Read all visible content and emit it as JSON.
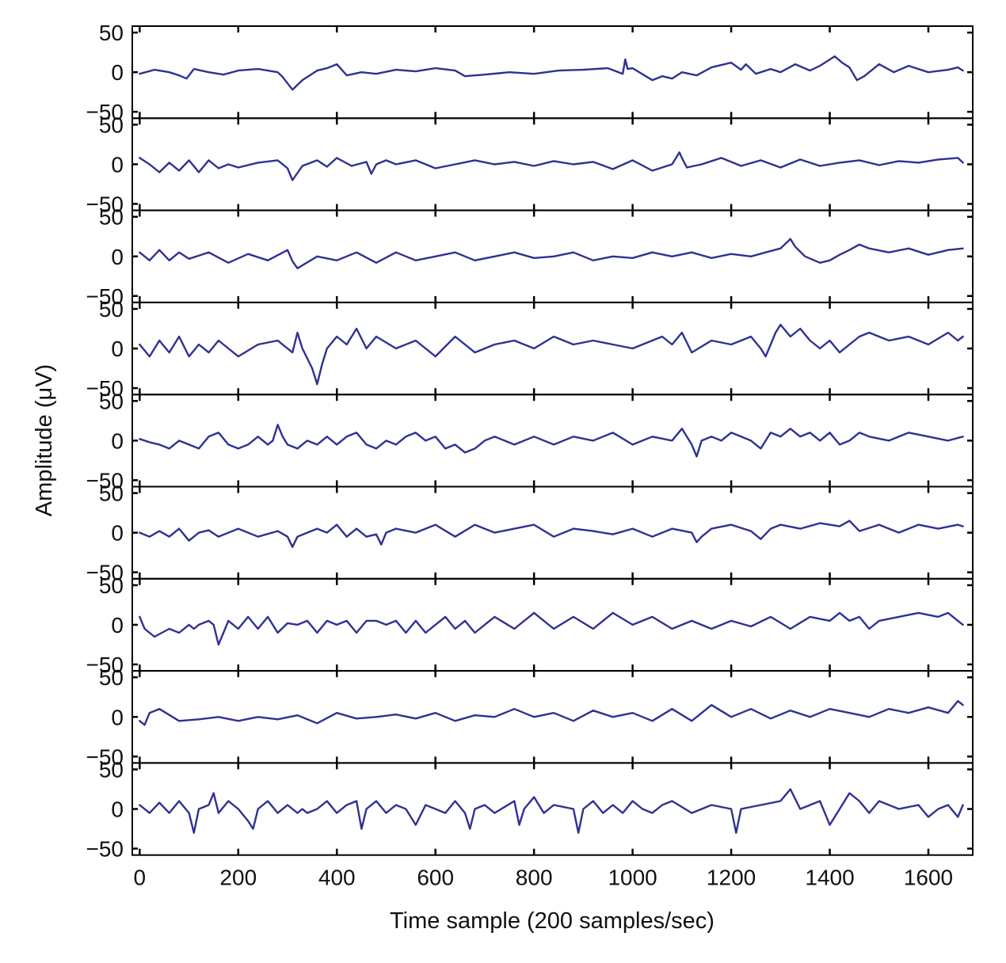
{
  "chart_data": {
    "type": "line",
    "xlabel": "Time sample (200 samples/sec)",
    "ylabel": "Amplitude (μV)",
    "xlim": [
      -15,
      1690
    ],
    "x_ticks": [
      0,
      200,
      400,
      600,
      800,
      1000,
      1200,
      1400,
      1600
    ],
    "x_tick_labels": [
      "0",
      "200",
      "400",
      "600",
      "800",
      "1000",
      "1200",
      "1400",
      "1600"
    ],
    "ylim": [
      -50,
      50
    ],
    "y_ticks": [
      50,
      0,
      -50
    ],
    "y_tick_labels": [
      "50",
      "0",
      "−50"
    ],
    "grid": false,
    "line_color": "#2e3192",
    "channels": [
      {
        "x": [
          0,
          30,
          60,
          80,
          95,
          110,
          140,
          170,
          200,
          240,
          280,
          290,
          300,
          310,
          330,
          360,
          380,
          400,
          410,
          420,
          450,
          480,
          520,
          560,
          600,
          640,
          660,
          700,
          750,
          800,
          850,
          900,
          950,
          980,
          985,
          990,
          1000,
          1040,
          1060,
          1080,
          1100,
          1130,
          1160,
          1200,
          1220,
          1230,
          1250,
          1280,
          1300,
          1330,
          1360,
          1380,
          1410,
          1425,
          1440,
          1455,
          1470,
          1500,
          1530,
          1560,
          1600,
          1640,
          1660,
          1670
        ],
        "values": [
          -2,
          3,
          0,
          -4,
          -8,
          4,
          0,
          -3,
          2,
          4,
          0,
          -6,
          -14,
          -22,
          -10,
          2,
          5,
          10,
          3,
          -4,
          0,
          -2,
          3,
          1,
          5,
          2,
          -5,
          -3,
          0,
          -2,
          2,
          3,
          5,
          -2,
          16,
          4,
          5,
          -10,
          -5,
          -8,
          0,
          -4,
          6,
          12,
          3,
          10,
          -2,
          4,
          0,
          10,
          2,
          8,
          20,
          12,
          6,
          -10,
          -5,
          10,
          0,
          8,
          0,
          3,
          6,
          2
        ]
      },
      {
        "x": [
          0,
          20,
          40,
          60,
          80,
          100,
          120,
          140,
          160,
          180,
          200,
          240,
          280,
          300,
          310,
          330,
          360,
          380,
          400,
          430,
          460,
          470,
          480,
          500,
          520,
          560,
          600,
          640,
          680,
          720,
          760,
          800,
          840,
          880,
          920,
          960,
          1000,
          1040,
          1080,
          1095,
          1100,
          1110,
          1140,
          1180,
          1220,
          1260,
          1300,
          1340,
          1380,
          1420,
          1460,
          1500,
          1540,
          1580,
          1620,
          1660,
          1670
        ],
        "values": [
          8,
          0,
          -10,
          2,
          -8,
          5,
          -10,
          5,
          -5,
          0,
          -4,
          2,
          5,
          -5,
          -20,
          -2,
          5,
          -3,
          8,
          -2,
          3,
          -12,
          0,
          5,
          0,
          5,
          -5,
          0,
          5,
          0,
          3,
          -2,
          4,
          0,
          3,
          -6,
          5,
          -8,
          0,
          15,
          8,
          -4,
          0,
          8,
          -2,
          5,
          -4,
          6,
          -2,
          2,
          5,
          -1,
          4,
          2,
          6,
          8,
          2
        ]
      },
      {
        "x": [
          0,
          20,
          40,
          60,
          80,
          100,
          140,
          180,
          220,
          260,
          300,
          310,
          320,
          360,
          400,
          440,
          480,
          520,
          560,
          600,
          640,
          680,
          720,
          760,
          800,
          840,
          880,
          920,
          960,
          1000,
          1040,
          1080,
          1120,
          1160,
          1200,
          1240,
          1270,
          1300,
          1320,
          1330,
          1350,
          1380,
          1400,
          1420,
          1440,
          1460,
          1480,
          1520,
          1560,
          1600,
          1640,
          1670
        ],
        "values": [
          5,
          -5,
          8,
          -5,
          5,
          -3,
          5,
          -8,
          3,
          -5,
          8,
          -6,
          -15,
          0,
          -5,
          5,
          -8,
          5,
          -5,
          0,
          5,
          -5,
          0,
          5,
          -2,
          0,
          5,
          -5,
          0,
          -2,
          5,
          0,
          5,
          -2,
          3,
          0,
          5,
          10,
          22,
          12,
          0,
          -8,
          -5,
          2,
          8,
          15,
          10,
          5,
          10,
          2,
          8,
          10
        ]
      },
      {
        "x": [
          0,
          20,
          40,
          60,
          80,
          100,
          120,
          140,
          160,
          180,
          200,
          240,
          280,
          310,
          320,
          330,
          350,
          360,
          370,
          380,
          400,
          420,
          440,
          460,
          480,
          520,
          560,
          600,
          640,
          680,
          720,
          760,
          800,
          840,
          880,
          920,
          960,
          1000,
          1040,
          1060,
          1080,
          1100,
          1120,
          1160,
          1200,
          1240,
          1260,
          1270,
          1280,
          1290,
          1300,
          1320,
          1340,
          1360,
          1380,
          1400,
          1420,
          1440,
          1460,
          1480,
          1520,
          1560,
          1600,
          1640,
          1660,
          1670
        ],
        "values": [
          5,
          -10,
          10,
          -5,
          15,
          -10,
          5,
          -5,
          10,
          0,
          -10,
          5,
          10,
          -5,
          20,
          0,
          -25,
          -45,
          -20,
          0,
          15,
          5,
          25,
          0,
          15,
          0,
          10,
          -10,
          15,
          -5,
          5,
          10,
          0,
          15,
          5,
          10,
          5,
          0,
          10,
          15,
          5,
          20,
          -5,
          10,
          5,
          15,
          0,
          -10,
          5,
          20,
          30,
          15,
          25,
          10,
          0,
          10,
          -5,
          5,
          15,
          20,
          10,
          15,
          5,
          20,
          10,
          15
        ]
      },
      {
        "x": [
          0,
          20,
          40,
          60,
          80,
          100,
          120,
          140,
          160,
          180,
          200,
          220,
          240,
          260,
          270,
          280,
          290,
          300,
          320,
          340,
          360,
          380,
          400,
          420,
          440,
          460,
          480,
          500,
          520,
          540,
          560,
          580,
          600,
          620,
          640,
          660,
          680,
          700,
          720,
          760,
          800,
          840,
          880,
          920,
          960,
          1000,
          1040,
          1080,
          1100,
          1120,
          1130,
          1140,
          1160,
          1180,
          1200,
          1220,
          1240,
          1260,
          1280,
          1300,
          1320,
          1340,
          1360,
          1380,
          1400,
          1420,
          1440,
          1460,
          1480,
          1520,
          1560,
          1600,
          1640,
          1670
        ],
        "values": [
          2,
          -2,
          -5,
          -10,
          0,
          -5,
          -10,
          5,
          10,
          -5,
          -10,
          -5,
          5,
          -5,
          0,
          20,
          5,
          -5,
          -10,
          0,
          -5,
          5,
          -5,
          5,
          10,
          -5,
          -10,
          0,
          -5,
          5,
          10,
          0,
          5,
          -10,
          -5,
          -15,
          -10,
          0,
          5,
          -5,
          5,
          -5,
          5,
          0,
          10,
          -5,
          5,
          0,
          15,
          -5,
          -20,
          0,
          5,
          0,
          10,
          5,
          0,
          -10,
          10,
          5,
          15,
          5,
          10,
          0,
          10,
          -5,
          0,
          10,
          5,
          0,
          10,
          5,
          0,
          5
        ]
      },
      {
        "x": [
          0,
          20,
          40,
          60,
          80,
          100,
          120,
          140,
          160,
          200,
          240,
          280,
          300,
          310,
          320,
          340,
          360,
          380,
          400,
          420,
          440,
          460,
          480,
          490,
          500,
          520,
          560,
          600,
          640,
          680,
          720,
          760,
          800,
          840,
          880,
          920,
          960,
          1000,
          1040,
          1080,
          1120,
          1130,
          1140,
          1160,
          1200,
          1240,
          1260,
          1280,
          1300,
          1340,
          1380,
          1420,
          1440,
          1460,
          1500,
          1540,
          1580,
          1620,
          1660,
          1670
        ],
        "values": [
          0,
          -5,
          2,
          -5,
          5,
          -10,
          0,
          3,
          -5,
          5,
          -5,
          2,
          -5,
          -18,
          -5,
          0,
          5,
          0,
          10,
          -5,
          5,
          -5,
          -2,
          -15,
          0,
          5,
          0,
          10,
          -5,
          10,
          0,
          5,
          10,
          -5,
          5,
          2,
          -2,
          5,
          -5,
          5,
          0,
          -12,
          -5,
          5,
          10,
          2,
          -8,
          5,
          10,
          5,
          12,
          8,
          15,
          2,
          10,
          0,
          10,
          5,
          10,
          8
        ]
      },
      {
        "x": [
          0,
          10,
          30,
          60,
          80,
          100,
          110,
          120,
          140,
          150,
          160,
          180,
          200,
          220,
          240,
          260,
          280,
          300,
          320,
          340,
          360,
          380,
          400,
          420,
          440,
          460,
          480,
          500,
          520,
          540,
          560,
          580,
          600,
          620,
          640,
          660,
          680,
          700,
          720,
          760,
          800,
          840,
          880,
          920,
          960,
          1000,
          1040,
          1080,
          1120,
          1160,
          1200,
          1240,
          1280,
          1320,
          1360,
          1400,
          1420,
          1440,
          1460,
          1480,
          1500,
          1540,
          1580,
          1620,
          1640,
          1660,
          1670
        ],
        "values": [
          10,
          -5,
          -15,
          -5,
          -10,
          0,
          -5,
          0,
          5,
          0,
          -25,
          5,
          -5,
          10,
          -5,
          10,
          -10,
          2,
          0,
          5,
          -10,
          5,
          0,
          5,
          -10,
          5,
          5,
          0,
          5,
          -10,
          5,
          -10,
          0,
          10,
          -5,
          5,
          -10,
          0,
          10,
          -5,
          15,
          -5,
          10,
          -5,
          15,
          0,
          10,
          -5,
          5,
          -5,
          5,
          -2,
          10,
          -5,
          10,
          5,
          15,
          5,
          10,
          -5,
          5,
          10,
          15,
          10,
          15,
          5,
          0
        ]
      },
      {
        "x": [
          0,
          10,
          20,
          40,
          80,
          120,
          160,
          200,
          240,
          280,
          320,
          360,
          400,
          440,
          480,
          520,
          560,
          600,
          640,
          680,
          720,
          760,
          800,
          840,
          880,
          920,
          960,
          1000,
          1040,
          1080,
          1120,
          1160,
          1200,
          1240,
          1280,
          1320,
          1360,
          1400,
          1440,
          1480,
          1520,
          1560,
          1600,
          1640,
          1660,
          1670
        ],
        "values": [
          -5,
          -10,
          5,
          10,
          -5,
          -3,
          0,
          -5,
          0,
          -3,
          2,
          -8,
          5,
          -2,
          0,
          3,
          -2,
          5,
          -5,
          2,
          0,
          10,
          0,
          5,
          -5,
          8,
          0,
          5,
          -5,
          10,
          -5,
          15,
          0,
          10,
          -2,
          8,
          0,
          10,
          5,
          0,
          10,
          5,
          12,
          5,
          20,
          15
        ]
      },
      {
        "x": [
          0,
          20,
          40,
          60,
          80,
          100,
          110,
          120,
          140,
          150,
          160,
          180,
          200,
          220,
          230,
          240,
          260,
          280,
          300,
          320,
          330,
          340,
          360,
          380,
          400,
          420,
          440,
          450,
          460,
          480,
          500,
          520,
          540,
          560,
          580,
          600,
          620,
          640,
          660,
          670,
          680,
          700,
          720,
          760,
          770,
          780,
          800,
          820,
          840,
          880,
          890,
          900,
          920,
          940,
          960,
          980,
          1000,
          1020,
          1040,
          1060,
          1080,
          1120,
          1160,
          1200,
          1210,
          1220,
          1260,
          1300,
          1320,
          1340,
          1380,
          1400,
          1420,
          1440,
          1460,
          1480,
          1500,
          1540,
          1580,
          1600,
          1620,
          1640,
          1660,
          1670
        ],
        "values": [
          5,
          -5,
          8,
          -5,
          10,
          -5,
          -30,
          0,
          5,
          20,
          -5,
          10,
          0,
          -15,
          -25,
          0,
          10,
          -5,
          5,
          -5,
          0,
          -5,
          0,
          10,
          -5,
          5,
          10,
          -25,
          0,
          10,
          -5,
          5,
          0,
          -20,
          5,
          0,
          -5,
          10,
          -5,
          -25,
          0,
          5,
          -5,
          10,
          -20,
          0,
          15,
          -5,
          5,
          0,
          -30,
          0,
          10,
          -5,
          5,
          -5,
          10,
          0,
          -5,
          5,
          10,
          -5,
          5,
          0,
          -30,
          0,
          5,
          10,
          25,
          0,
          10,
          -20,
          0,
          20,
          10,
          -5,
          10,
          0,
          5,
          -10,
          0,
          5,
          -10,
          5
        ]
      }
    ]
  }
}
